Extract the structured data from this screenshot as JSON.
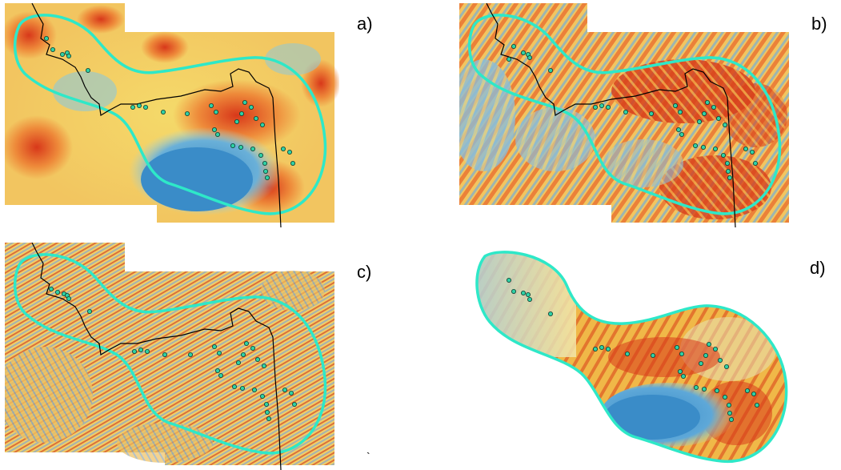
{
  "panels": [
    {
      "id": "a",
      "label": "a)"
    },
    {
      "id": "b",
      "label": "b)"
    },
    {
      "id": "c",
      "label": "c)"
    },
    {
      "id": "d",
      "label": "d)"
    }
  ],
  "stray_mark": "`",
  "colors": {
    "boundary_outline": "#2ee8c8",
    "site_marker_fill": "#2fd1a6",
    "site_marker_stroke": "#0b3b2e",
    "admin_line": "#000000",
    "ramp_low": "#3a8cc8",
    "ramp_mid": "#f4e45c",
    "ramp_high": "#e03a18"
  },
  "icons": {
    "site_marker": "circle-marker",
    "study_area": "buffer-outline",
    "border": "boundary-line"
  }
}
